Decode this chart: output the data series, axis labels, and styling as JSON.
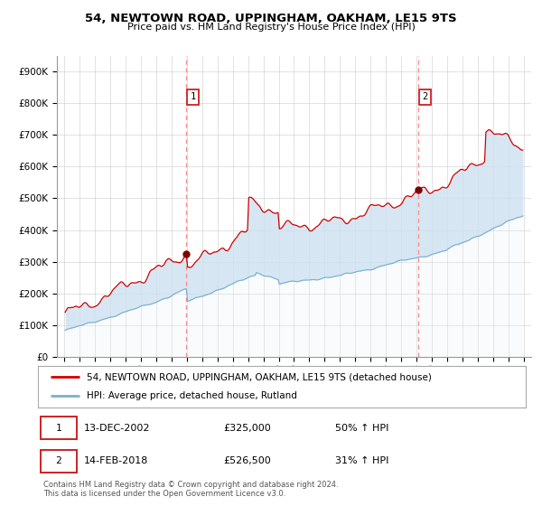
{
  "title": "54, NEWTOWN ROAD, UPPINGHAM, OAKHAM, LE15 9TS",
  "subtitle": "Price paid vs. HM Land Registry's House Price Index (HPI)",
  "legend_line1": "54, NEWTOWN ROAD, UPPINGHAM, OAKHAM, LE15 9TS (detached house)",
  "legend_line2": "HPI: Average price, detached house, Rutland",
  "transaction1_date": "13-DEC-2002",
  "transaction1_price": 325000,
  "transaction1_pct": "50%",
  "transaction2_date": "14-FEB-2018",
  "transaction2_price": 526500,
  "transaction2_pct": "31%",
  "transaction1_x": 2002.95,
  "transaction2_x": 2018.12,
  "hpi_line_color": "#7bafd4",
  "price_line_color": "#cc0000",
  "dot_color": "#800000",
  "vline_color": "#ff8888",
  "fill_color": "#c8dff0",
  "plot_bg": "#ffffff",
  "grid_color": "#cccccc",
  "yticks": [
    0,
    100000,
    200000,
    300000,
    400000,
    500000,
    600000,
    700000,
    800000,
    900000
  ],
  "ytick_labels": [
    "£0",
    "£100K",
    "£200K",
    "£300K",
    "£400K",
    "£500K",
    "£600K",
    "£700K",
    "£800K",
    "£900K"
  ],
  "footer": "Contains HM Land Registry data © Crown copyright and database right 2024.\nThis data is licensed under the Open Government Licence v3.0.",
  "xstart": 1995,
  "xend": 2025
}
